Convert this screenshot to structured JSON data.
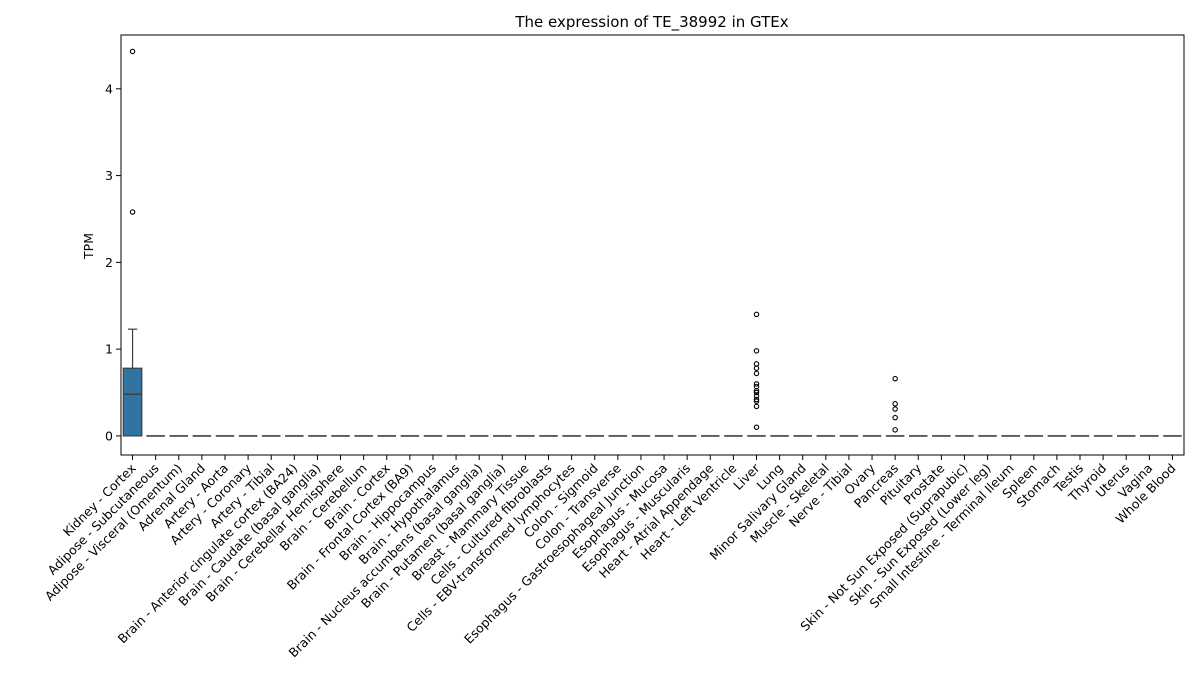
{
  "chart_data": {
    "type": "box",
    "title": "The expression of TE_38992 in GTEx",
    "ylabel": "TPM",
    "xlabel": "",
    "ylim": [
      -0.22,
      4.62
    ],
    "yticks": [
      0,
      1,
      2,
      3,
      4
    ],
    "box_color": "#3274a1",
    "categories": [
      "Kidney - Cortex",
      "Adipose - Subcutaneous",
      "Adipose - Visceral (Omentum)",
      "Adrenal Gland",
      "Artery - Aorta",
      "Artery - Coronary",
      "Artery - Tibial",
      "Brain - Anterior cingulate cortex (BA24)",
      "Brain - Caudate (basal ganglia)",
      "Brain - Cerebellar Hemisphere",
      "Brain - Cerebellum",
      "Brain - Cortex",
      "Brain - Frontal Cortex (BA9)",
      "Brain - Hippocampus",
      "Brain - Hypothalamus",
      "Brain - Nucleus accumbens (basal ganglia)",
      "Brain - Putamen (basal ganglia)",
      "Breast - Mammary Tissue",
      "Cells - Cultured fibroblasts",
      "Cells - EBV-transformed lymphocytes",
      "Colon - Sigmoid",
      "Colon - Transverse",
      "Esophagus - Gastroesophageal Junction",
      "Esophagus - Mucosa",
      "Esophagus - Muscularis",
      "Heart - Atrial Appendage",
      "Heart - Left Ventricle",
      "Liver",
      "Lung",
      "Minor Salivary Gland",
      "Muscle - Skeletal",
      "Nerve - Tibial",
      "Ovary",
      "Pancreas",
      "Pituitary",
      "Prostate",
      "Skin - Not Sun Exposed (Suprapubic)",
      "Skin - Sun Exposed (Lower leg)",
      "Small Intestine - Terminal Ileum",
      "Spleen",
      "Stomach",
      "Testis",
      "Thyroid",
      "Uterus",
      "Vagina",
      "Whole Blood"
    ],
    "boxes": [
      {
        "index": 0,
        "q1": 0.0,
        "median": 0.48,
        "q3": 0.78,
        "whisker_low": 0.0,
        "whisker_high": 1.23,
        "outliers": [
          2.58,
          4.43
        ]
      },
      {
        "index": 27,
        "q1": 0.0,
        "median": 0.0,
        "q3": 0.0,
        "whisker_low": 0.0,
        "whisker_high": 0.0,
        "outliers": [
          0.1,
          0.34,
          0.4,
          0.42,
          0.46,
          0.5,
          0.52,
          0.57,
          0.6,
          0.72,
          0.78,
          0.83,
          0.98,
          1.4
        ]
      },
      {
        "index": 33,
        "q1": 0.0,
        "median": 0.0,
        "q3": 0.0,
        "whisker_low": 0.0,
        "whisker_high": 0.0,
        "outliers": [
          0.07,
          0.21,
          0.31,
          0.37,
          0.66
        ]
      }
    ]
  }
}
